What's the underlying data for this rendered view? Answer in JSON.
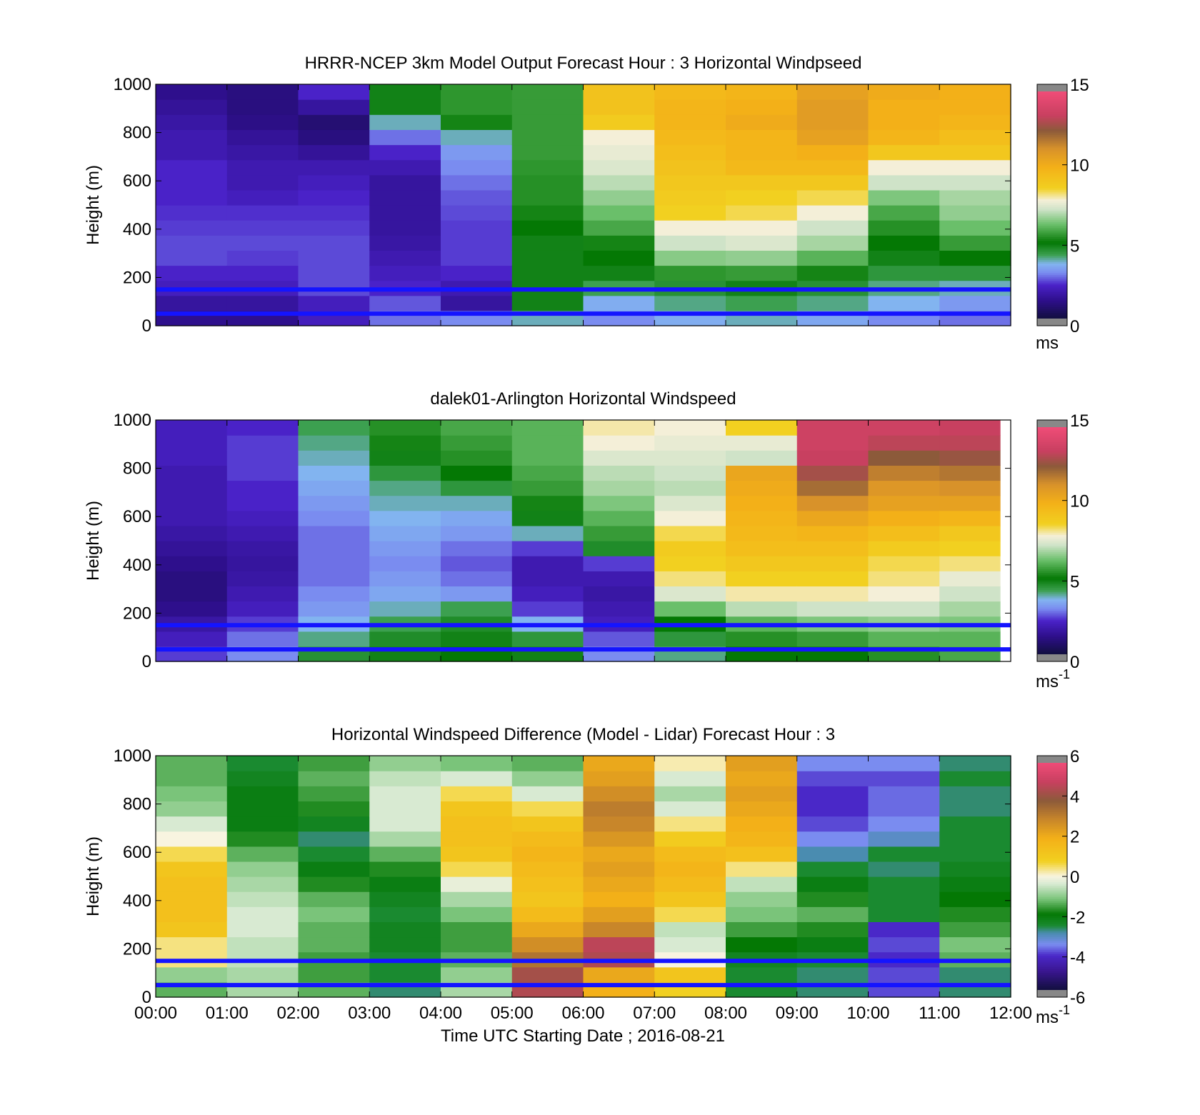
{
  "figure": {
    "xlabel": "Time UTC  Starting Date ; 2016-08-21",
    "x_ticks": [
      "00:00",
      "01:00",
      "02:00",
      "03:00",
      "04:00",
      "05:00",
      "06:00",
      "07:00",
      "08:00",
      "09:00",
      "10:00",
      "11:00",
      "12:00"
    ]
  },
  "chart_data": [
    {
      "type": "heatmap",
      "title": "HRRR-NCEP 3km Model Output   Forecast Hour : 3 Horizontal Windpseed",
      "ylabel": "Height (m)",
      "y_ticks": [
        "0",
        "200",
        "400",
        "600",
        "800",
        "1000"
      ],
      "ylim": [
        0,
        1000
      ],
      "xlim": [
        0,
        12
      ],
      "x_ticks_shown": false,
      "colorbar": {
        "ticks": [
          "0",
          "5",
          "10",
          "15"
        ],
        "range": [
          0,
          15
        ],
        "unit_main": "ms",
        "unit_sup": "",
        "scale": "speed"
      },
      "reference_lines_m": [
        50,
        150
      ],
      "z_units": "m/s",
      "z_values_by_hour": [
        [
          1.2,
          1.5,
          2.0,
          2.2,
          2.5,
          2.5,
          2.4,
          2.3,
          2.2,
          2.2,
          2.2,
          1.8,
          1.8,
          1.6,
          1.4,
          1.2
        ],
        [
          1.2,
          1.5,
          2.0,
          2.2,
          2.4,
          2.5,
          2.4,
          2.3,
          2.0,
          1.8,
          1.8,
          1.6,
          1.4,
          1.1,
          1.0,
          1.0
        ],
        [
          2.0,
          2.0,
          2.5,
          2.5,
          2.5,
          2.5,
          2.4,
          2.3,
          2.2,
          2.0,
          1.8,
          1.4,
          1.0,
          0.8,
          1.5,
          2.2
        ],
        [
          2.8,
          2.6,
          2.2,
          2.0,
          1.8,
          1.6,
          1.5,
          1.5,
          1.5,
          1.5,
          1.8,
          2.2,
          2.8,
          3.8,
          4.8,
          4.8
        ],
        [
          3.0,
          1.5,
          1.8,
          2.2,
          2.4,
          2.4,
          2.4,
          2.5,
          2.6,
          2.8,
          3.0,
          3.2,
          3.8,
          5.2,
          5.5,
          5.5
        ],
        [
          3.8,
          4.8,
          4.8,
          4.8,
          4.8,
          4.8,
          5.0,
          5.2,
          5.4,
          5.4,
          5.5,
          5.6,
          5.6,
          5.6,
          5.6,
          5.6
        ],
        [
          3.0,
          3.5,
          4.2,
          4.8,
          5.0,
          5.2,
          5.8,
          6.2,
          6.6,
          7.0,
          7.4,
          7.6,
          7.8,
          8.8,
          9.2,
          9.2
        ],
        [
          3.5,
          4.0,
          4.5,
          5.5,
          6.5,
          7.2,
          7.8,
          8.6,
          8.8,
          9.0,
          9.2,
          9.4,
          9.6,
          9.8,
          9.8,
          9.6
        ],
        [
          3.8,
          4.2,
          4.8,
          5.6,
          6.6,
          7.4,
          7.8,
          8.4,
          8.6,
          9.0,
          9.6,
          9.8,
          9.8,
          10.2,
          10.0,
          9.8
        ],
        [
          3.4,
          4.0,
          4.5,
          5.2,
          6.0,
          6.8,
          7.2,
          7.8,
          8.4,
          9.0,
          9.6,
          10.0,
          10.6,
          10.8,
          10.8,
          10.6
        ],
        [
          3.0,
          3.6,
          4.0,
          4.4,
          4.8,
          5.0,
          5.4,
          5.8,
          6.4,
          7.2,
          7.8,
          9.0,
          9.8,
          10.0,
          10.0,
          10.2
        ],
        [
          2.8,
          3.2,
          3.8,
          4.4,
          5.0,
          5.6,
          6.2,
          6.6,
          6.8,
          7.2,
          7.8,
          9.0,
          9.4,
          9.8,
          10.0,
          10.0
        ]
      ]
    },
    {
      "type": "heatmap",
      "title": "dalek01-Arlington  Horizontal Windspeed",
      "ylabel": "Height (m)",
      "y_ticks": [
        "0",
        "200",
        "400",
        "600",
        "800",
        "1000"
      ],
      "ylim": [
        0,
        1000
      ],
      "xlim": [
        0,
        12
      ],
      "x_ticks_shown": false,
      "colorbar": {
        "ticks": [
          "0",
          "5",
          "10",
          "15"
        ],
        "range": [
          0,
          15
        ],
        "unit_main": "ms",
        "unit_sup": "-1",
        "scale": "speed"
      },
      "reference_lines_m": [
        50,
        150
      ],
      "data_end_hour": 11.85,
      "z_units": "m/s",
      "z_values_by_hour": [
        [
          2.4,
          2.0,
          1.6,
          1.2,
          1.0,
          1.0,
          1.2,
          1.4,
          1.6,
          1.8,
          1.8,
          1.8,
          1.8,
          2.0,
          2.0,
          2.0
        ],
        [
          3.0,
          2.8,
          2.4,
          2.0,
          1.8,
          1.6,
          1.5,
          1.6,
          1.8,
          2.0,
          2.2,
          2.2,
          2.4,
          2.4,
          2.4,
          2.2
        ],
        [
          4.5,
          4.0,
          3.6,
          3.2,
          3.0,
          2.8,
          2.8,
          2.8,
          2.8,
          3.0,
          3.2,
          3.4,
          3.6,
          3.8,
          4.0,
          4.2
        ],
        [
          4.8,
          4.6,
          4.2,
          3.8,
          3.4,
          3.2,
          3.0,
          3.2,
          3.4,
          3.6,
          3.8,
          4.0,
          4.4,
          4.8,
          5.2,
          5.4
        ],
        [
          5.0,
          4.8,
          4.6,
          4.2,
          3.2,
          2.8,
          2.6,
          2.8,
          3.2,
          3.4,
          3.8,
          4.4,
          5.0,
          5.4,
          5.6,
          5.8
        ],
        [
          4.8,
          4.4,
          3.6,
          2.4,
          2.0,
          1.8,
          1.8,
          2.4,
          3.8,
          4.8,
          5.2,
          5.6,
          5.8,
          6.0,
          6.0,
          6.0
        ],
        [
          3.0,
          2.6,
          2.0,
          1.8,
          1.6,
          1.8,
          2.4,
          4.6,
          5.6,
          6.0,
          6.4,
          6.8,
          7.0,
          7.4,
          7.8,
          8.0
        ],
        [
          4.0,
          4.4,
          5.0,
          6.2,
          7.4,
          8.2,
          8.6,
          8.8,
          8.4,
          7.8,
          7.4,
          7.0,
          7.2,
          7.4,
          7.6,
          7.8
        ],
        [
          5.0,
          5.4,
          6.0,
          7.0,
          8.0,
          8.6,
          9.0,
          9.4,
          9.6,
          9.8,
          10.0,
          10.2,
          10.4,
          7.2,
          7.6,
          8.6
        ],
        [
          5.0,
          5.6,
          6.4,
          7.2,
          8.0,
          8.6,
          9.0,
          9.4,
          9.8,
          10.4,
          11.2,
          12.0,
          12.8,
          13.4,
          13.6,
          13.6
        ],
        [
          5.4,
          6.0,
          6.6,
          7.2,
          7.8,
          8.2,
          8.4,
          8.8,
          9.4,
          10.0,
          10.6,
          11.0,
          11.6,
          12.4,
          13.2,
          13.6
        ],
        [
          5.8,
          6.0,
          6.4,
          6.8,
          7.2,
          7.6,
          8.2,
          8.6,
          9.0,
          9.8,
          10.6,
          11.2,
          11.8,
          12.6,
          13.2,
          13.4
        ]
      ]
    },
    {
      "type": "heatmap",
      "title": "Horizontal Windspeed Difference (Model - Lidar) Forecast Hour : 3",
      "ylabel": "Height (m)",
      "y_ticks": [
        "0",
        "200",
        "400",
        "600",
        "800",
        "1000"
      ],
      "ylim": [
        0,
        1000
      ],
      "xlim": [
        0,
        12
      ],
      "x_ticks_shown": true,
      "colorbar": {
        "ticks": [
          "-6",
          "-4",
          "-2",
          "0",
          "2",
          "4",
          "6"
        ],
        "range": [
          -6,
          6
        ],
        "unit_main": "ms",
        "unit_sup": "-1",
        "scale": "diff"
      },
      "reference_lines_m": [
        50,
        150
      ],
      "z_units": "m/s",
      "z_values_by_hour": [
        [
          -1.4,
          -1.0,
          0.4,
          0.4,
          1.2,
          1.4,
          1.4,
          1.4,
          1.2,
          0.6,
          0.0,
          -0.4,
          -1.0,
          -1.2,
          -1.4,
          -1.4
        ],
        [
          -0.8,
          -0.8,
          -0.6,
          -0.6,
          -0.4,
          -0.4,
          -0.6,
          -0.8,
          -1.0,
          -1.4,
          -1.8,
          -2.2,
          -2.2,
          -2.2,
          -2.4,
          -2.6
        ],
        [
          -1.4,
          -1.6,
          -1.6,
          -1.4,
          -1.4,
          -1.2,
          -1.4,
          -1.8,
          -2.2,
          -2.6,
          -2.8,
          -2.4,
          -1.8,
          -1.6,
          -1.4,
          -1.6
        ],
        [
          -2.8,
          -2.6,
          -2.6,
          -2.4,
          -2.4,
          -2.6,
          -2.4,
          -2.2,
          -1.8,
          -1.4,
          -0.8,
          -0.4,
          -0.4,
          -0.4,
          -0.6,
          -1.0
        ],
        [
          -0.8,
          -1.0,
          -1.4,
          -1.6,
          -1.6,
          -1.2,
          -0.8,
          -0.2,
          0.6,
          1.2,
          1.4,
          1.4,
          1.2,
          0.6,
          -0.4,
          -1.2
        ],
        [
          4.6,
          4.4,
          3.4,
          2.8,
          2.2,
          1.6,
          1.2,
          1.4,
          1.6,
          1.8,
          1.6,
          1.2,
          0.6,
          -0.4,
          -1.0,
          -1.4
        ],
        [
          2.0,
          2.2,
          4.6,
          4.8,
          3.0,
          2.4,
          2.0,
          2.2,
          2.4,
          2.2,
          2.6,
          3.0,
          3.2,
          2.8,
          2.4,
          2.2
        ],
        [
          0.8,
          1.2,
          0.0,
          -0.4,
          -0.6,
          0.6,
          1.2,
          1.6,
          1.8,
          1.6,
          1.0,
          0.4,
          -0.4,
          -0.8,
          -0.4,
          0.2
        ],
        [
          -2.6,
          -2.6,
          -2.4,
          -2.0,
          -1.6,
          -1.2,
          -1.0,
          -0.6,
          0.4,
          1.4,
          1.8,
          2.0,
          2.2,
          2.4,
          2.2,
          2.4
        ],
        [
          -2.8,
          -2.8,
          -2.6,
          -2.2,
          -1.8,
          -1.4,
          -1.8,
          -2.2,
          -2.6,
          -3.0,
          -3.6,
          -4.0,
          -4.2,
          -4.2,
          -4.0,
          -3.6
        ],
        [
          -4.0,
          -4.0,
          -4.2,
          -4.0,
          -4.2,
          -2.6,
          -2.6,
          -2.6,
          -2.8,
          -2.6,
          -3.2,
          -3.6,
          -3.8,
          -3.8,
          -4.0,
          -3.6
        ],
        [
          -2.8,
          -2.8,
          -1.4,
          -1.2,
          -1.6,
          -1.8,
          -2.0,
          -2.2,
          -2.4,
          -2.6,
          -2.6,
          -2.6,
          -2.8,
          -2.8,
          -2.6,
          -2.8
        ]
      ]
    }
  ],
  "colors": {
    "reference_line": "#1414ff",
    "axes": "#000000",
    "background": "#ffffff",
    "colorbar_cap": "#888888",
    "speed_colormap": [
      [
        0.0,
        "#120f3f"
      ],
      [
        1.2,
        "#2e0f8c"
      ],
      [
        2.2,
        "#4a22c8"
      ],
      [
        3.0,
        "#7a8cf0"
      ],
      [
        3.6,
        "#82b4f0"
      ],
      [
        4.2,
        "#3ca050"
      ],
      [
        5.0,
        "#047804"
      ],
      [
        6.2,
        "#6abf6a"
      ],
      [
        7.2,
        "#cfe3c8"
      ],
      [
        7.8,
        "#f4efd8"
      ],
      [
        8.6,
        "#f2d020"
      ],
      [
        10.0,
        "#f3b018"
      ],
      [
        11.2,
        "#d8922a"
      ],
      [
        12.4,
        "#8c5a3a"
      ],
      [
        13.4,
        "#c84060"
      ],
      [
        15.0,
        "#f04c78"
      ]
    ],
    "diff_colormap": [
      [
        -6.0,
        "#120f3f"
      ],
      [
        -5.0,
        "#3a1690"
      ],
      [
        -4.2,
        "#4a28c8"
      ],
      [
        -3.6,
        "#7a8cf0"
      ],
      [
        -3.0,
        "#4a8cb0"
      ],
      [
        -2.6,
        "#1a8a30"
      ],
      [
        -2.0,
        "#047804"
      ],
      [
        -1.2,
        "#7ac47a"
      ],
      [
        -0.4,
        "#d8ead2"
      ],
      [
        0.0,
        "#f8f4e0"
      ],
      [
        0.8,
        "#f2d020"
      ],
      [
        2.0,
        "#f3b018"
      ],
      [
        3.0,
        "#c8862a"
      ],
      [
        4.0,
        "#8c5a3a"
      ],
      [
        5.0,
        "#c84060"
      ],
      [
        6.0,
        "#f04c78"
      ]
    ]
  }
}
